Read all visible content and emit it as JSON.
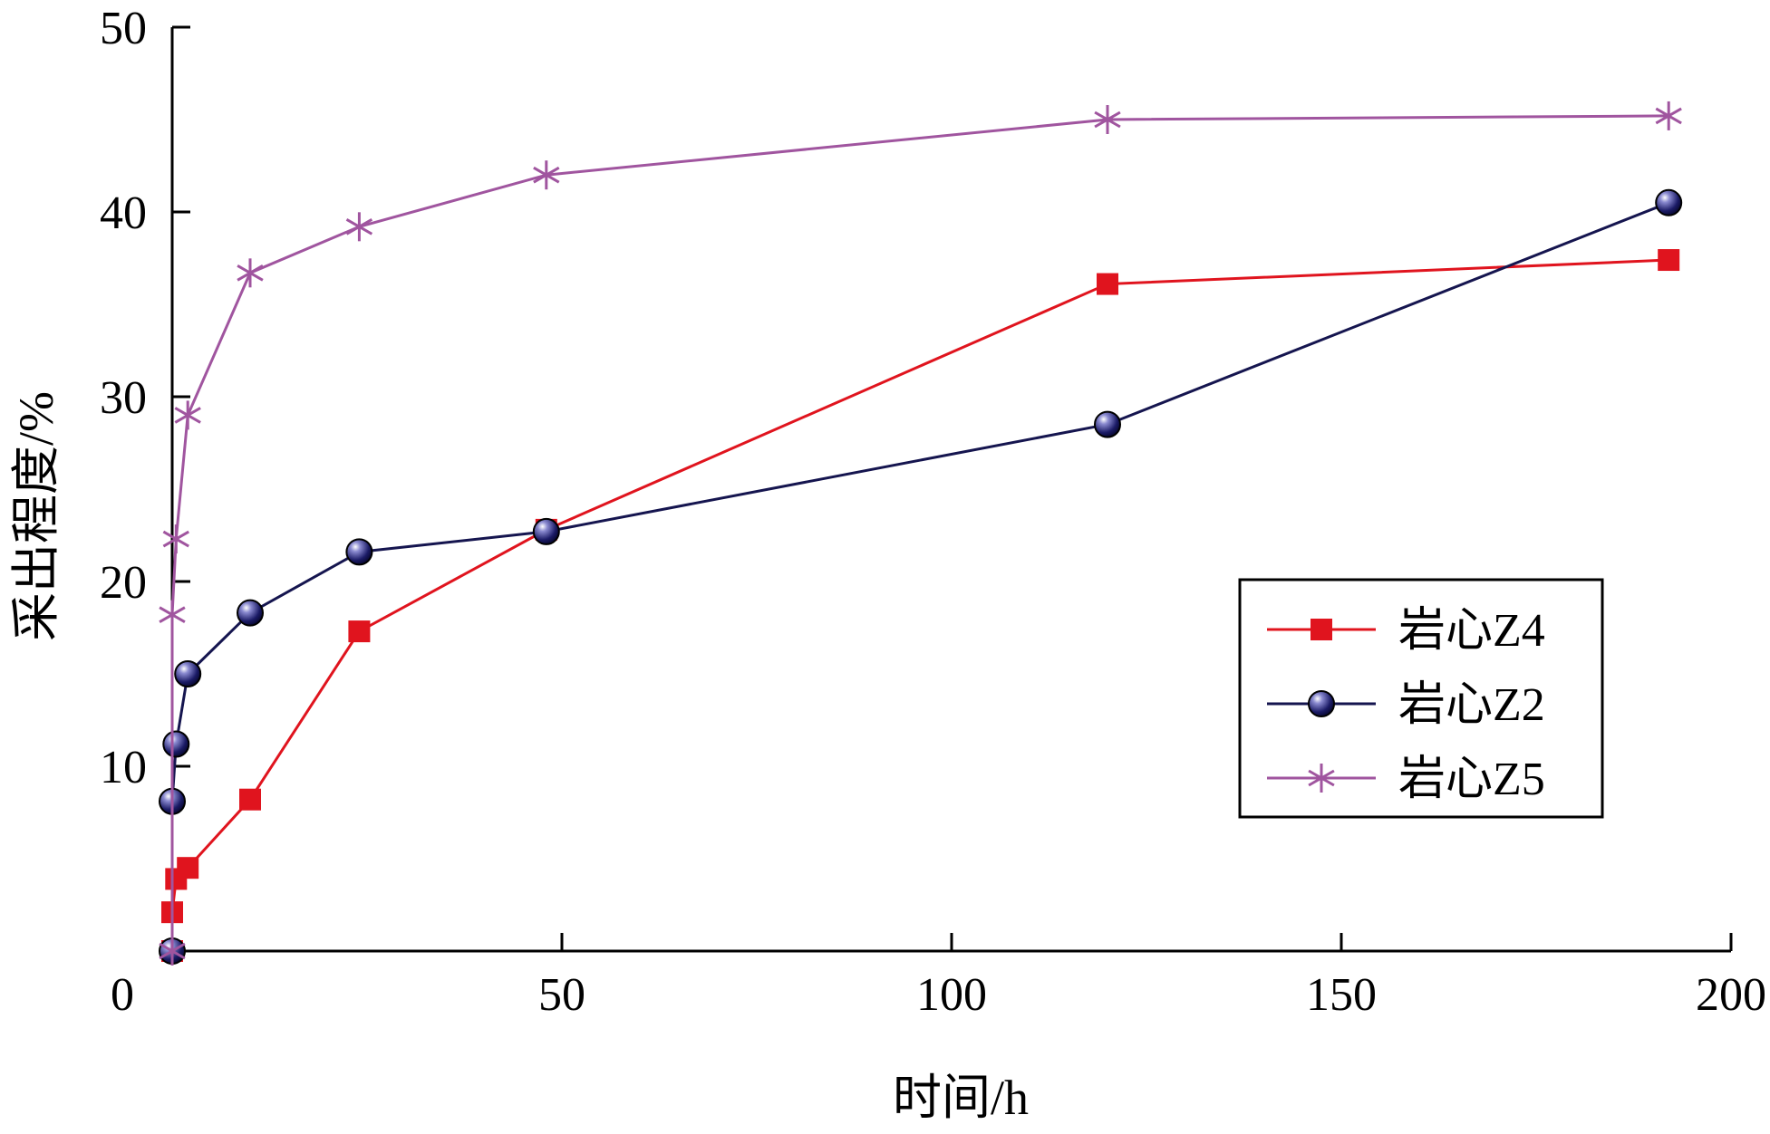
{
  "chart_data": {
    "type": "line",
    "title": "",
    "xlabel": "时间/h",
    "ylabel": "采出程度/%",
    "xlim": [
      0,
      200
    ],
    "ylim": [
      0,
      50
    ],
    "xticks": [
      0,
      50,
      100,
      150,
      200
    ],
    "yticks": [
      10,
      20,
      30,
      40,
      50
    ],
    "grid": false,
    "legend_position": "center-right",
    "series": [
      {
        "name": "岩心Z4",
        "color": "#e0141e",
        "marker": "square",
        "x": [
          0,
          0,
          0.5,
          2,
          10,
          24,
          48,
          120,
          192
        ],
        "y": [
          0,
          2.1,
          3.9,
          4.5,
          8.2,
          17.3,
          22.8,
          36.1,
          37.4
        ]
      },
      {
        "name": "岩心Z2",
        "color": "#15154f",
        "marker": "sphere",
        "x": [
          0,
          0,
          0.5,
          2,
          10,
          24,
          48,
          120,
          192
        ],
        "y": [
          0,
          8.1,
          11.2,
          15.0,
          18.3,
          21.6,
          22.7,
          28.5,
          40.5
        ]
      },
      {
        "name": "岩心Z5",
        "color": "#a0559f",
        "marker": "asterisk",
        "x": [
          0,
          0,
          0.5,
          2,
          10,
          24,
          48,
          120,
          192
        ],
        "y": [
          0,
          18.2,
          22.3,
          29.0,
          36.7,
          39.2,
          42.0,
          45.0,
          45.2
        ]
      }
    ]
  }
}
